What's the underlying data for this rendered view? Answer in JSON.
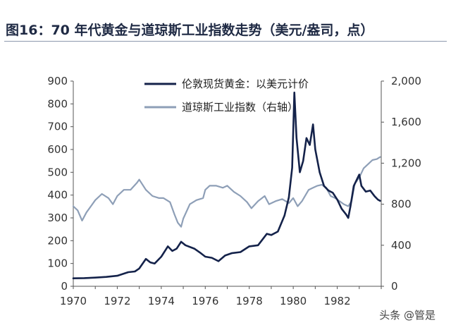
{
  "figure": {
    "title": "图16：70 年代黄金与道琼斯工业指数走势（美元/盎司，点）",
    "watermark": "头条 @管是"
  },
  "chart_data": {
    "type": "line",
    "xlim": [
      1970,
      1984
    ],
    "x_ticks": [
      "1970",
      "1972",
      "1974",
      "1976",
      "1978",
      "1980",
      "1982"
    ],
    "y_left": {
      "lim": [
        0,
        900
      ],
      "ticks": [
        "0",
        "100",
        "200",
        "300",
        "400",
        "500",
        "600",
        "700",
        "800",
        "900"
      ]
    },
    "y_right": {
      "lim": [
        0,
        2000
      ],
      "ticks": [
        "0",
        "400",
        "800",
        "1,200",
        "1,600",
        "2,000"
      ]
    },
    "grid": false,
    "legend_position": "top-center",
    "series": [
      {
        "name": "伦敦现货黄金：以美元计价",
        "axis": "left",
        "color": "#14224a",
        "points": [
          [
            1970.0,
            35
          ],
          [
            1970.5,
            36
          ],
          [
            1971.0,
            38
          ],
          [
            1971.5,
            41
          ],
          [
            1972.0,
            46
          ],
          [
            1972.5,
            62
          ],
          [
            1972.8,
            65
          ],
          [
            1973.0,
            78
          ],
          [
            1973.3,
            120
          ],
          [
            1973.5,
            105
          ],
          [
            1973.7,
            100
          ],
          [
            1974.0,
            130
          ],
          [
            1974.3,
            175
          ],
          [
            1974.5,
            155
          ],
          [
            1974.7,
            165
          ],
          [
            1974.9,
            195
          ],
          [
            1975.1,
            180
          ],
          [
            1975.5,
            165
          ],
          [
            1975.8,
            145
          ],
          [
            1976.0,
            130
          ],
          [
            1976.3,
            125
          ],
          [
            1976.6,
            110
          ],
          [
            1976.9,
            135
          ],
          [
            1977.2,
            145
          ],
          [
            1977.6,
            150
          ],
          [
            1978.0,
            175
          ],
          [
            1978.4,
            180
          ],
          [
            1978.8,
            230
          ],
          [
            1979.0,
            225
          ],
          [
            1979.3,
            240
          ],
          [
            1979.6,
            310
          ],
          [
            1979.8,
            390
          ],
          [
            1979.95,
            520
          ],
          [
            1980.05,
            850
          ],
          [
            1980.15,
            650
          ],
          [
            1980.3,
            500
          ],
          [
            1980.45,
            550
          ],
          [
            1980.6,
            650
          ],
          [
            1980.75,
            620
          ],
          [
            1980.9,
            710
          ],
          [
            1981.0,
            600
          ],
          [
            1981.2,
            500
          ],
          [
            1981.4,
            440
          ],
          [
            1981.6,
            420
          ],
          [
            1981.8,
            410
          ],
          [
            1982.0,
            380
          ],
          [
            1982.2,
            340
          ],
          [
            1982.4,
            315
          ],
          [
            1982.5,
            300
          ],
          [
            1982.6,
            350
          ],
          [
            1982.75,
            440
          ],
          [
            1982.9,
            470
          ],
          [
            1983.0,
            490
          ],
          [
            1983.1,
            440
          ],
          [
            1983.3,
            415
          ],
          [
            1983.5,
            420
          ],
          [
            1983.7,
            395
          ],
          [
            1983.85,
            380
          ],
          [
            1983.95,
            375
          ]
        ]
      },
      {
        "name": "道琼斯工业指数（右轴）",
        "axis": "right",
        "color": "#8e9fb7",
        "points": [
          [
            1970.0,
            780
          ],
          [
            1970.2,
            740
          ],
          [
            1970.4,
            640
          ],
          [
            1970.6,
            720
          ],
          [
            1970.8,
            780
          ],
          [
            1971.0,
            840
          ],
          [
            1971.3,
            900
          ],
          [
            1971.6,
            860
          ],
          [
            1971.8,
            800
          ],
          [
            1972.0,
            880
          ],
          [
            1972.3,
            940
          ],
          [
            1972.6,
            940
          ],
          [
            1972.9,
            1010
          ],
          [
            1973.0,
            1040
          ],
          [
            1973.3,
            940
          ],
          [
            1973.6,
            880
          ],
          [
            1973.9,
            860
          ],
          [
            1974.1,
            860
          ],
          [
            1974.4,
            820
          ],
          [
            1974.6,
            700
          ],
          [
            1974.75,
            620
          ],
          [
            1974.9,
            580
          ],
          [
            1975.0,
            660
          ],
          [
            1975.3,
            800
          ],
          [
            1975.6,
            840
          ],
          [
            1975.9,
            860
          ],
          [
            1976.0,
            940
          ],
          [
            1976.2,
            980
          ],
          [
            1976.5,
            980
          ],
          [
            1976.8,
            960
          ],
          [
            1977.0,
            980
          ],
          [
            1977.3,
            920
          ],
          [
            1977.6,
            880
          ],
          [
            1977.9,
            820
          ],
          [
            1978.1,
            760
          ],
          [
            1978.4,
            830
          ],
          [
            1978.7,
            880
          ],
          [
            1978.9,
            800
          ],
          [
            1979.2,
            830
          ],
          [
            1979.5,
            850
          ],
          [
            1979.8,
            810
          ],
          [
            1980.0,
            860
          ],
          [
            1980.2,
            780
          ],
          [
            1980.4,
            830
          ],
          [
            1980.7,
            940
          ],
          [
            1980.9,
            960
          ],
          [
            1981.1,
            980
          ],
          [
            1981.3,
            990
          ],
          [
            1981.5,
            960
          ],
          [
            1981.7,
            880
          ],
          [
            1981.9,
            860
          ],
          [
            1982.1,
            830
          ],
          [
            1982.3,
            800
          ],
          [
            1982.5,
            780
          ],
          [
            1982.65,
            830
          ],
          [
            1982.8,
            1000
          ],
          [
            1983.0,
            1060
          ],
          [
            1983.2,
            1150
          ],
          [
            1983.45,
            1200
          ],
          [
            1983.6,
            1230
          ],
          [
            1983.8,
            1240
          ],
          [
            1983.95,
            1260
          ]
        ]
      }
    ]
  }
}
